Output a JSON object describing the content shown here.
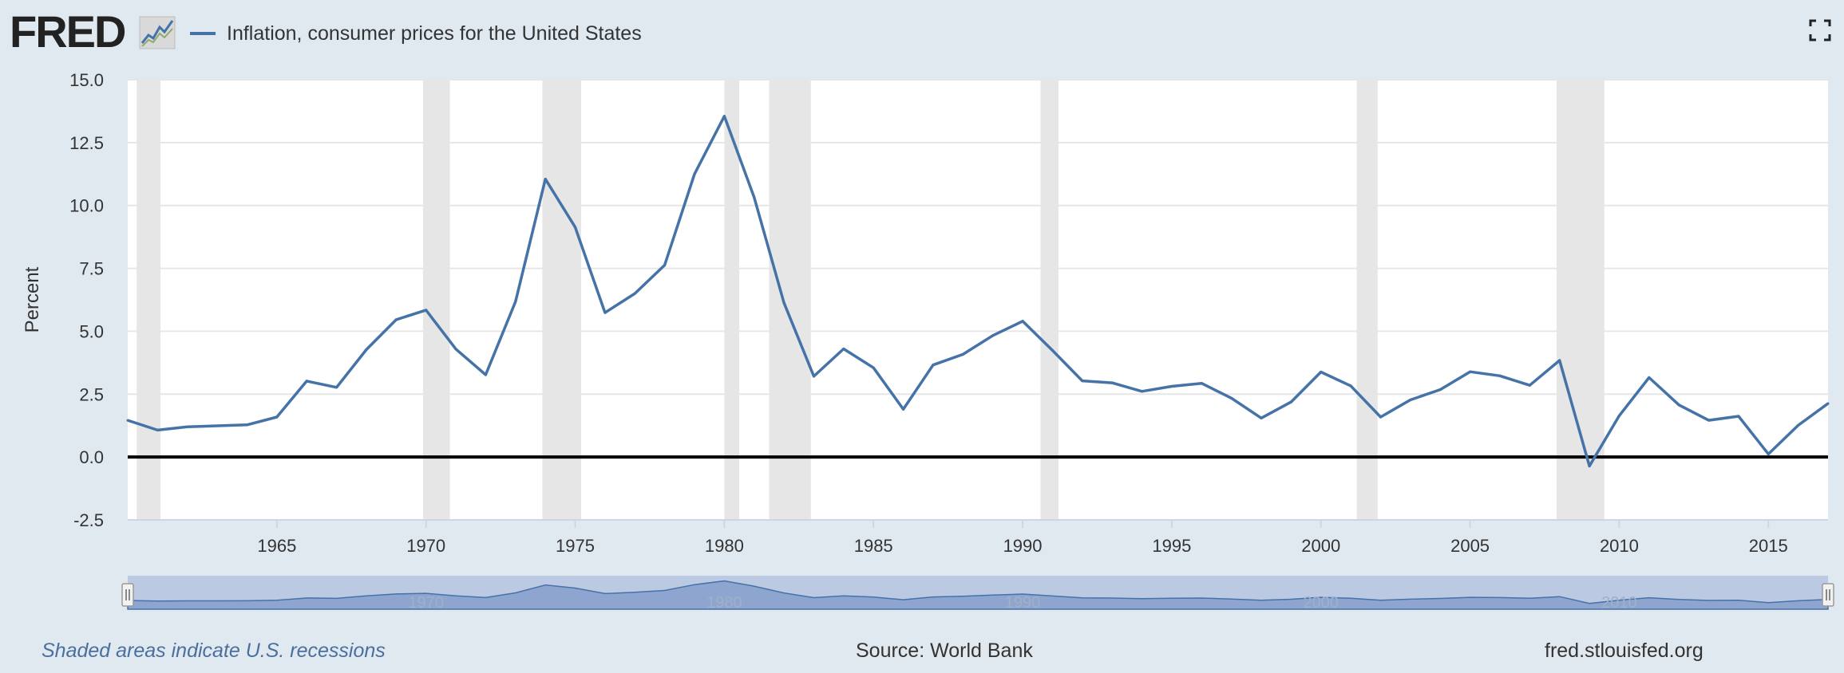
{
  "header": {
    "logo_text": "FRED",
    "legend_label": "Inflation, consumer prices for the United States"
  },
  "footer": {
    "recession_note": "Shaded areas indicate U.S. recessions",
    "source": "Source: World Bank",
    "site": "fred.stlouisfed.org"
  },
  "colors": {
    "line": "#4572a7",
    "recession": "#e6e6e6",
    "background": "#e1e9f0",
    "navigator_mask": "#b3c3e0",
    "navigator_fill": "#8ea6cf"
  },
  "chart_data": {
    "type": "line",
    "title": "",
    "xlabel": "",
    "ylabel": "Percent",
    "xlim": [
      1960,
      2017
    ],
    "ylim": [
      -2.5,
      15.0
    ],
    "y_ticks": [
      "15.0",
      "12.5",
      "10.0",
      "7.5",
      "5.0",
      "2.5",
      "0.0",
      "-2.5"
    ],
    "x_ticks": [
      "1965",
      "1970",
      "1975",
      "1980",
      "1985",
      "1990",
      "1995",
      "2000",
      "2005",
      "2010",
      "2015"
    ],
    "navigator_ticks": [
      "1970",
      "1980",
      "1990",
      "2000",
      "2010"
    ],
    "grid": true,
    "legend": "top-left",
    "recessions": [
      [
        1960.3,
        1961.1
      ],
      [
        1969.9,
        1970.8
      ],
      [
        1973.9,
        1975.2
      ],
      [
        1980.0,
        1980.5
      ],
      [
        1981.5,
        1982.9
      ],
      [
        1990.6,
        1991.2
      ],
      [
        2001.2,
        2001.9
      ],
      [
        2007.9,
        2009.5
      ]
    ],
    "series": [
      {
        "name": "Inflation, consumer prices for the United States",
        "x": [
          1960,
          1961,
          1962,
          1963,
          1964,
          1965,
          1966,
          1967,
          1968,
          1969,
          1970,
          1971,
          1972,
          1973,
          1974,
          1975,
          1976,
          1977,
          1978,
          1979,
          1980,
          1981,
          1982,
          1983,
          1984,
          1985,
          1986,
          1987,
          1988,
          1989,
          1990,
          1991,
          1992,
          1993,
          1994,
          1995,
          1996,
          1997,
          1998,
          1999,
          2000,
          2001,
          2002,
          2003,
          2004,
          2005,
          2006,
          2007,
          2008,
          2009,
          2010,
          2011,
          2012,
          2013,
          2014,
          2015,
          2016,
          2017
        ],
        "values": [
          1.46,
          1.07,
          1.2,
          1.24,
          1.28,
          1.59,
          3.02,
          2.77,
          4.27,
          5.46,
          5.84,
          4.29,
          3.27,
          6.18,
          11.05,
          9.14,
          5.74,
          6.5,
          7.63,
          11.25,
          13.55,
          10.33,
          6.13,
          3.21,
          4.3,
          3.55,
          1.9,
          3.66,
          4.08,
          4.83,
          5.4,
          4.24,
          3.03,
          2.95,
          2.61,
          2.81,
          2.93,
          2.34,
          1.55,
          2.19,
          3.38,
          2.83,
          1.59,
          2.27,
          2.68,
          3.39,
          3.23,
          2.85,
          3.84,
          -0.36,
          1.64,
          3.16,
          2.07,
          1.46,
          1.62,
          0.12,
          1.26,
          2.13
        ]
      }
    ]
  }
}
